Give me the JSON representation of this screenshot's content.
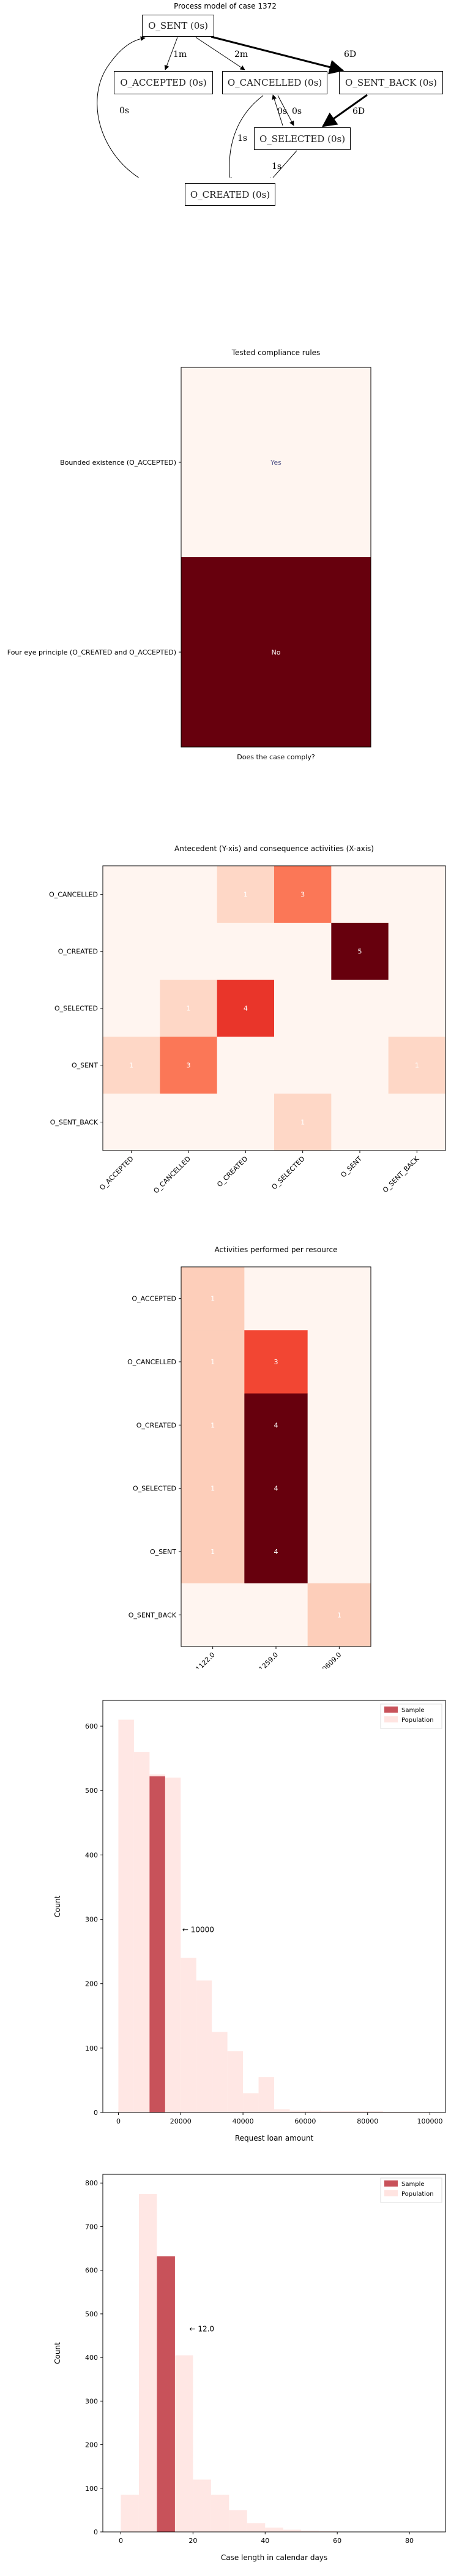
{
  "process_model": {
    "title": "Process model of case 1372",
    "nodes": [
      {
        "id": "sent",
        "label": "O_SENT (0s)"
      },
      {
        "id": "accepted",
        "label": "O_ACCEPTED (0s)"
      },
      {
        "id": "cancelled",
        "label": "O_CANCELLED (0s)"
      },
      {
        "id": "sent_back",
        "label": "O_SENT_BACK (0s)"
      },
      {
        "id": "selected",
        "label": "O_SELECTED (0s)"
      },
      {
        "id": "created",
        "label": "O_CREATED (0s)"
      }
    ],
    "edges": [
      {
        "from": "sent",
        "to": "accepted",
        "label": "1m"
      },
      {
        "from": "sent",
        "to": "cancelled",
        "label": "2m"
      },
      {
        "from": "sent",
        "to": "sent_back",
        "label": "6D"
      },
      {
        "from": "sent_back",
        "to": "selected",
        "label": "6D"
      },
      {
        "from": "selected",
        "to": "cancelled",
        "label": "0s"
      },
      {
        "from": "cancelled",
        "to": "selected",
        "label": "0s"
      },
      {
        "from": "cancelled",
        "to": "created",
        "label": "1s"
      },
      {
        "from": "selected",
        "to": "created",
        "label": "1s"
      },
      {
        "from": "created",
        "to": "sent",
        "label": "0s"
      }
    ]
  },
  "chart_data": [
    {
      "type": "heatmap",
      "title": "Tested compliance rules",
      "xlabel": "Does the case comply?",
      "rows": [
        "Bounded existence (O_ACCEPTED)",
        "Four eye principle (O_CREATED and O_ACCEPTED)"
      ],
      "cells": [
        {
          "label": "Yes",
          "value": 0
        },
        {
          "label": "No",
          "value": 1
        }
      ],
      "colors": {
        "low": "#fff5f0",
        "high": "#67000d",
        "yes_text": "#5a5a8c",
        "no_text": "#ffffff"
      }
    },
    {
      "type": "heatmap",
      "title": "Antecedent (Y-xis) and consequence activities (X-axis)",
      "rows": [
        "O_CANCELLED",
        "O_CREATED",
        "O_SELECTED",
        "O_SENT",
        "O_SENT_BACK"
      ],
      "columns": [
        "O_ACCEPTED",
        "O_CANCELLED",
        "O_CREATED",
        "O_SELECTED",
        "O_SENT",
        "O_SENT_BACK"
      ],
      "values": [
        [
          0,
          0,
          1,
          3,
          0,
          0
        ],
        [
          0,
          0,
          0,
          0,
          5,
          0
        ],
        [
          0,
          1,
          4,
          0,
          0,
          0
        ],
        [
          1,
          3,
          0,
          0,
          0,
          1
        ],
        [
          0,
          0,
          0,
          1,
          0,
          0
        ]
      ],
      "vmax": 5
    },
    {
      "type": "heatmap",
      "title": "Activities performed per resource",
      "rows": [
        "O_ACCEPTED",
        "O_CANCELLED",
        "O_CREATED",
        "O_SELECTED",
        "O_SENT",
        "O_SENT_BACK"
      ],
      "columns": [
        "11122.0",
        "11259.0",
        "10609.0"
      ],
      "values": [
        [
          1,
          0,
          0
        ],
        [
          1,
          3,
          0
        ],
        [
          1,
          4,
          0
        ],
        [
          1,
          4,
          0
        ],
        [
          1,
          4,
          0
        ],
        [
          0,
          0,
          1
        ]
      ],
      "vmax": 4
    },
    {
      "type": "bar",
      "xlabel": "Request loan amount",
      "ylabel": "Count",
      "xlim": [
        -5000,
        105000
      ],
      "ylim": [
        0,
        640
      ],
      "xticks": [
        0,
        20000,
        40000,
        60000,
        80000,
        100000
      ],
      "yticks": [
        0,
        100,
        200,
        300,
        400,
        500,
        600
      ],
      "bin_width": 5000,
      "series": [
        {
          "name": "Population",
          "color": "#ffe4e1",
          "x": [
            0,
            5000,
            10000,
            15000,
            20000,
            25000,
            30000,
            35000,
            40000,
            45000,
            50000,
            55000,
            60000,
            65000,
            70000,
            75000,
            80000,
            85000,
            90000,
            95000
          ],
          "values": [
            610,
            560,
            525,
            520,
            240,
            205,
            125,
            95,
            30,
            55,
            5,
            3,
            3,
            2,
            2,
            2,
            2,
            1,
            1,
            1
          ]
        },
        {
          "name": "Sample",
          "color": "#c8525a",
          "x": [
            10000
          ],
          "values": [
            522
          ]
        }
      ],
      "annotation": "← 10000",
      "annotation_at": {
        "x": 20500,
        "y": 280
      },
      "legend": "top-right"
    },
    {
      "type": "bar",
      "xlabel": "Case length in calendar days",
      "ylabel": "Count",
      "xlim": [
        -5,
        90
      ],
      "ylim": [
        0,
        820
      ],
      "xticks": [
        0,
        20,
        40,
        60,
        80
      ],
      "yticks": [
        0,
        100,
        200,
        300,
        400,
        500,
        600,
        700,
        800
      ],
      "bin_width": 5,
      "series": [
        {
          "name": "Population",
          "color": "#ffe4e1",
          "x": [
            0,
            5,
            10,
            15,
            20,
            25,
            30,
            35,
            40,
            45,
            50,
            55
          ],
          "values": [
            85,
            775,
            630,
            405,
            120,
            85,
            50,
            20,
            10,
            5,
            3,
            2
          ]
        },
        {
          "name": "Sample",
          "color": "#c8525a",
          "x": [
            10
          ],
          "values": [
            632
          ]
        }
      ],
      "annotation": "← 12.0",
      "annotation_at": {
        "x": 19,
        "y": 460
      },
      "legend": "top-right"
    }
  ]
}
